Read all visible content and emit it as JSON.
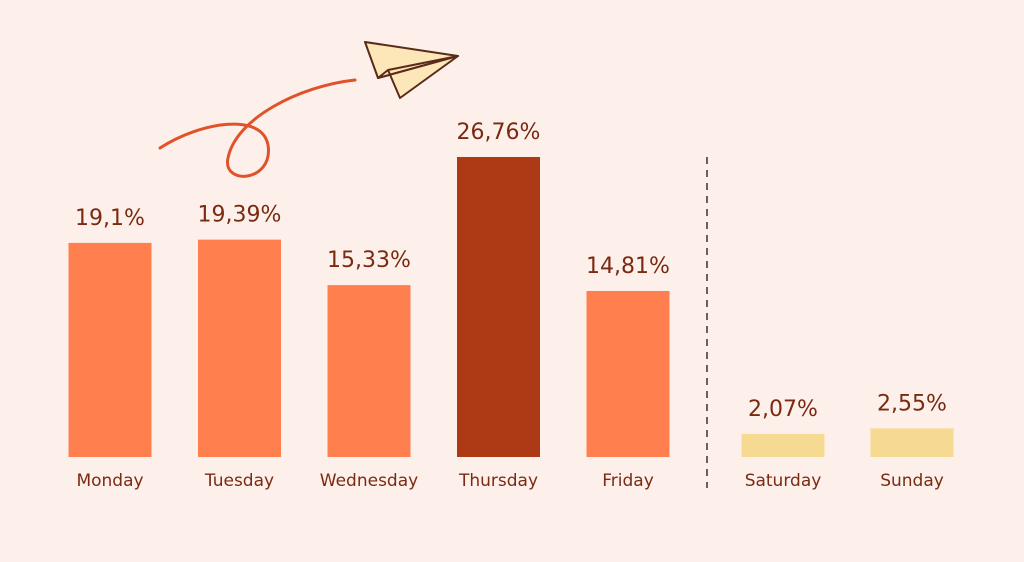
{
  "chart_data": {
    "type": "bar",
    "categories": [
      "Monday",
      "Tuesday",
      "Wednesday",
      "Thursday",
      "Friday",
      "Saturday",
      "Sunday"
    ],
    "values": [
      19.1,
      19.39,
      15.33,
      26.76,
      14.81,
      2.07,
      2.55
    ],
    "value_labels": [
      "19,1%",
      "19,39%",
      "15,33%",
      "26,76%",
      "14,81%",
      "2,07%",
      "2,55%"
    ],
    "colors": [
      "#ff7f4f",
      "#ff7f4f",
      "#ff7f4f",
      "#ad3a14",
      "#ff7f4f",
      "#f6da92",
      "#f6da92"
    ]
  }
}
